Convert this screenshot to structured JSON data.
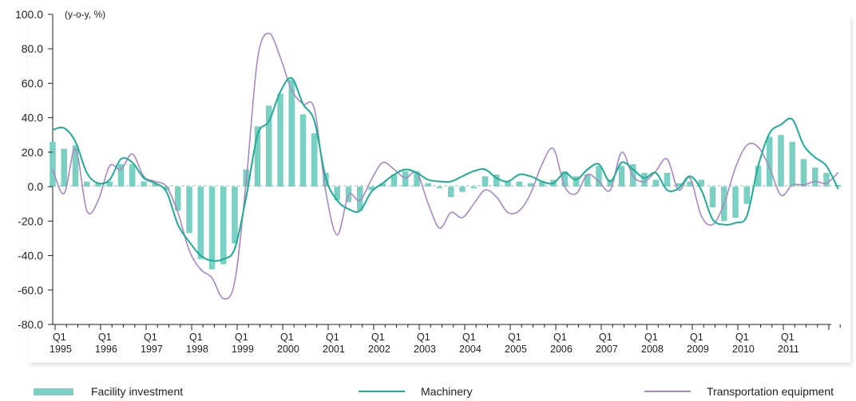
{
  "chart_data": {
    "type": "bar+line",
    "ylabel": "(y-o-y, %)",
    "ylim": [
      -80,
      100
    ],
    "yticks": [
      "100.0",
      "80.0",
      "60.0",
      "40.0",
      "20.0",
      "0.0",
      "-20.0",
      "-40.0",
      "-60.0",
      "-80.0"
    ],
    "x_ticks": [
      {
        "q": "Q1",
        "year": "1995"
      },
      {
        "q": "Q1",
        "year": "1996"
      },
      {
        "q": "Q1",
        "year": "1997"
      },
      {
        "q": "Q1",
        "year": "1998"
      },
      {
        "q": "Q1",
        "year": "1999"
      },
      {
        "q": "Q1",
        "year": "2000"
      },
      {
        "q": "Q1",
        "year": "2001"
      },
      {
        "q": "Q1",
        "year": "2002"
      },
      {
        "q": "Q1",
        "year": "2003"
      },
      {
        "q": "Q1",
        "year": "2004"
      },
      {
        "q": "Q1",
        "year": "2005"
      },
      {
        "q": "Q1",
        "year": "2006"
      },
      {
        "q": "Q1",
        "year": "2007"
      },
      {
        "q": "Q1",
        "year": "2008"
      },
      {
        "q": "Q1",
        "year": "2009"
      },
      {
        "q": "Q1",
        "year": "2010"
      },
      {
        "q": "Q1",
        "year": "2011"
      }
    ],
    "period_start": "1995 Q1",
    "series": [
      {
        "name": "Facility investment",
        "kind": "bar",
        "color": "#7ad0c2",
        "values": [
          26,
          22,
          24,
          3,
          2,
          3,
          13,
          13,
          3,
          2,
          -2,
          -14,
          -27,
          -42,
          -48,
          -45,
          -33,
          10,
          35,
          47,
          54,
          62,
          42,
          31,
          8,
          -8,
          -9,
          -14,
          -2,
          2,
          7,
          9,
          9,
          2,
          -1,
          -6,
          -3,
          -1,
          6,
          7,
          3,
          3,
          2,
          3,
          4,
          9,
          6,
          7,
          12,
          4,
          12,
          13,
          8,
          4,
          8,
          2,
          3,
          4,
          -12,
          -20,
          -18,
          -10,
          12,
          29,
          30,
          26,
          16,
          11,
          8,
          1
        ]
      },
      {
        "name": "Machinery",
        "kind": "line",
        "color": "#1eac94",
        "values": [
          33,
          34,
          26,
          8,
          2,
          4,
          16,
          14,
          5,
          2,
          -3,
          -22,
          -32,
          -40,
          -43,
          -42,
          -36,
          -6,
          30,
          38,
          55,
          63,
          48,
          38,
          5,
          -8,
          -13,
          -14,
          -3,
          2,
          7,
          10,
          8,
          4,
          3,
          3,
          6,
          9,
          10,
          5,
          3,
          7,
          6,
          3,
          2,
          8,
          4,
          10,
          13,
          3,
          14,
          10,
          5,
          8,
          -2,
          -1,
          6,
          -2,
          -19,
          -22,
          -21,
          -17,
          12,
          31,
          36,
          39,
          24,
          17,
          12,
          -1
        ]
      },
      {
        "name": "Transportation equipment",
        "kind": "line",
        "color": "#a888c2",
        "values": [
          10,
          -4,
          22,
          -14,
          -8,
          12,
          10,
          19,
          6,
          3,
          0,
          -15,
          -37,
          -48,
          -53,
          -65,
          -55,
          3,
          74,
          89,
          75,
          56,
          48,
          45,
          -3,
          -28,
          -5,
          -8,
          4,
          14,
          10,
          5,
          8,
          -10,
          -24,
          -15,
          -18,
          -10,
          -2,
          -6,
          -15,
          -14,
          -4,
          13,
          22,
          0,
          -4,
          7,
          3,
          -2,
          20,
          6,
          3,
          9,
          16,
          -2,
          5,
          -17,
          -22,
          -10,
          11,
          24,
          23,
          11,
          -5,
          1,
          1,
          3,
          2,
          8
        ]
      }
    ]
  }
}
